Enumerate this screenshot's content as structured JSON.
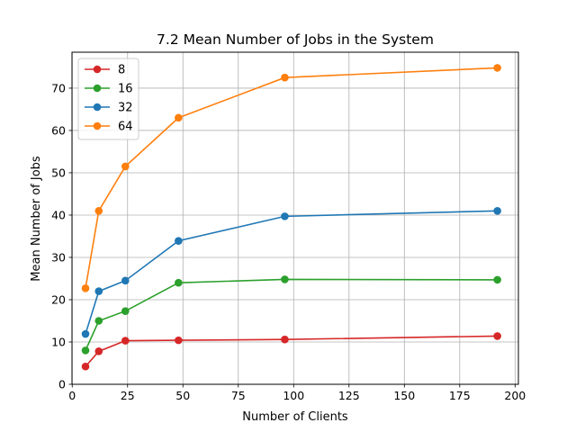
{
  "chart_data": {
    "type": "line",
    "title": "7.2 Mean Number of Jobs in the System",
    "xlabel": "Number of Clients",
    "ylabel": "Mean Number of Jobs",
    "xlim": [
      -0.1,
      201.5
    ],
    "ylim": [
      0,
      78.5
    ],
    "xticks": [
      0,
      25,
      50,
      75,
      100,
      125,
      150,
      175,
      200
    ],
    "yticks": [
      0,
      10,
      20,
      30,
      40,
      50,
      60,
      70
    ],
    "grid": true,
    "legend_position": "top-left",
    "x": [
      6,
      12,
      24,
      48,
      96,
      192
    ],
    "series": [
      {
        "name": "8",
        "color": "#d62728",
        "values": [
          4.2,
          7.8,
          10.3,
          10.4,
          10.6,
          11.4
        ]
      },
      {
        "name": "16",
        "color": "#2ca02c",
        "values": [
          8.0,
          15.0,
          17.3,
          24.0,
          24.8,
          24.7
        ]
      },
      {
        "name": "32",
        "color": "#1f77b4",
        "values": [
          11.9,
          22.0,
          24.5,
          33.9,
          39.7,
          41.0
        ]
      },
      {
        "name": "64",
        "color": "#ff7f0e",
        "values": [
          22.7,
          41.0,
          51.5,
          63.0,
          72.5,
          74.8
        ]
      }
    ]
  }
}
